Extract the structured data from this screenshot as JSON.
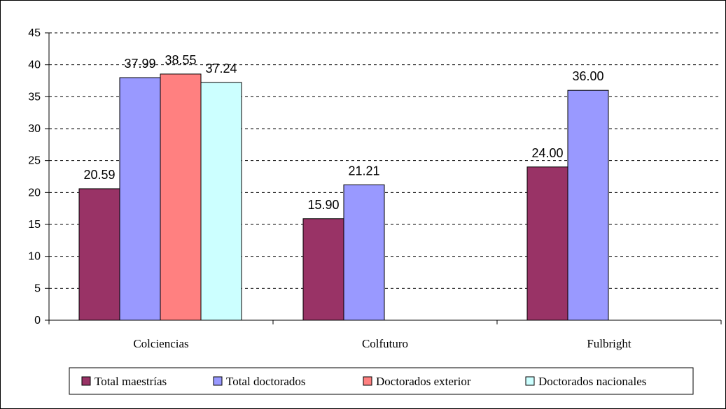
{
  "chart_data": {
    "type": "bar",
    "categories": [
      "Colciencias",
      "Colfuturo",
      "Fulbright"
    ],
    "series": [
      {
        "name": "Total maestrías",
        "values": [
          20.59,
          15.9,
          24.0
        ],
        "color": "#993366"
      },
      {
        "name": "Total doctorados",
        "values": [
          37.99,
          21.21,
          36.0
        ],
        "color": "#9999FF"
      },
      {
        "name": "Doctorados exterior",
        "values": [
          38.55,
          null,
          null
        ],
        "color": "#FF8080"
      },
      {
        "name": "Doctorados nacionales",
        "values": [
          37.24,
          null,
          null
        ],
        "color": "#CCFFFF"
      }
    ],
    "data_labels": [
      [
        "20.59",
        "15.90",
        "24.00"
      ],
      [
        "37.99",
        "21.21",
        "36.00"
      ],
      [
        "38.55",
        "",
        ""
      ],
      [
        "37.24",
        "",
        ""
      ]
    ],
    "ylim": [
      0,
      45
    ],
    "yticks": [
      0,
      5,
      10,
      15,
      20,
      25,
      30,
      35,
      40,
      45
    ],
    "grid": true,
    "legend_position": "bottom",
    "title": "",
    "xlabel": "",
    "ylabel": ""
  }
}
